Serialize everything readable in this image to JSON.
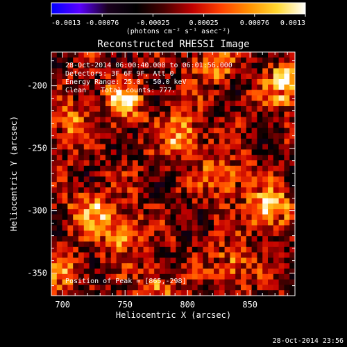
{
  "colorbar": {
    "ticks": [
      "-0.0013",
      "-0.00076",
      "-0.00025",
      "0.00025",
      "0.00076",
      "0.0013"
    ],
    "units": "(photons cm⁻² s⁻¹ asec⁻²)",
    "colormap": [
      "#0000ff",
      "#5a00ff",
      "#1a001e",
      "#000000",
      "#4a0000",
      "#c00000",
      "#ff4000",
      "#ff9000",
      "#ffd830",
      "#ffffff"
    ]
  },
  "info": {
    "time_range": "28-Oct-2014 06:00:40.000 to 06:01:56.000",
    "detectors": "Detectors: 3F 6F 9F, Att 0",
    "energy": "Energy Range: 25.0 - 50.0 keV",
    "algorithm": "Clean",
    "counts": "Total counts: 777.",
    "peak": "Position of Peak = [865,-298]"
  },
  "timestamp": "28-Oct-2014 23:56",
  "chart_data": {
    "type": "heatmap",
    "title": "Reconstructed RHESSI Image",
    "xlabel": "Heliocentric X (arcsec)",
    "ylabel": "Heliocentric Y (arcsec)",
    "xlim": [
      691,
      886
    ],
    "ylim": [
      -368,
      -173
    ],
    "xticks": [
      "700",
      "750",
      "800",
      "850"
    ],
    "xtick_values": [
      700,
      750,
      800,
      850
    ],
    "yticks": [
      "-200",
      "-250",
      "-300",
      "-350"
    ],
    "ytick_values": [
      -200,
      -250,
      -300,
      -350
    ],
    "clim": [
      -0.0013,
      0.0013
    ],
    "grid": false,
    "peak": [
      865,
      -298
    ],
    "sources": [
      {
        "x": 878,
        "y": -198,
        "amp": 0.0013
      },
      {
        "x": 865,
        "y": -298,
        "amp": 0.0013
      },
      {
        "x": 795,
        "y": -238,
        "amp": 0.0012
      },
      {
        "x": 748,
        "y": -213,
        "amp": 0.0011
      },
      {
        "x": 745,
        "y": -315,
        "amp": 0.0011
      },
      {
        "x": 722,
        "y": -298,
        "amp": 0.0009
      },
      {
        "x": 828,
        "y": -272,
        "amp": 0.0009
      },
      {
        "x": 705,
        "y": -230,
        "amp": 0.0008
      },
      {
        "x": 835,
        "y": -345,
        "amp": 0.0008
      },
      {
        "x": 775,
        "y": -360,
        "amp": 0.0007
      },
      {
        "x": 820,
        "y": -182,
        "amp": 0.0008
      },
      {
        "x": 700,
        "y": -348,
        "amp": 0.0007
      }
    ]
  }
}
